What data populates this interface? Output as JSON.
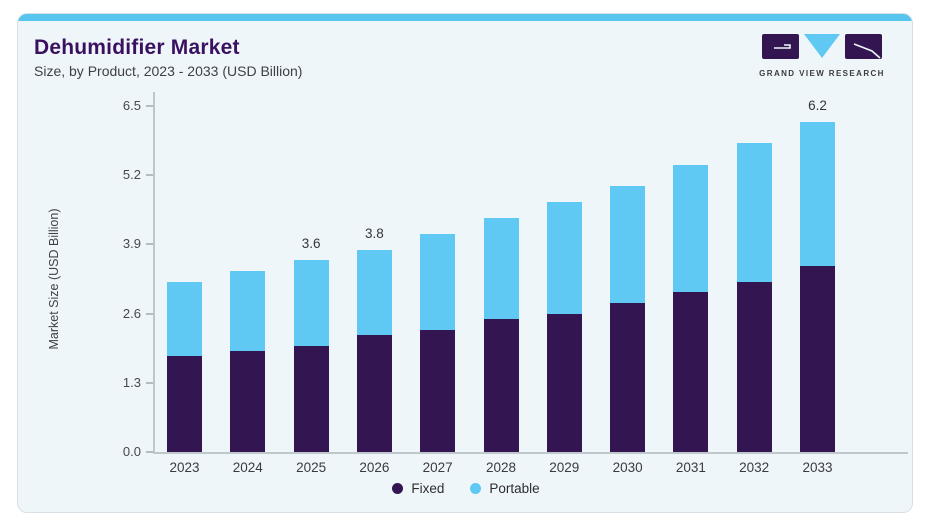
{
  "header": {
    "title": "Dehumidifier Market",
    "subtitle": "Size, by Product, 2023 - 2033 (USD Billion)"
  },
  "logo": {
    "text": "GRAND VIEW RESEARCH",
    "purple": "#331552",
    "blue": "#5fc8f3"
  },
  "colors": {
    "card_bg": "#eff6fa",
    "accent_strip": "#57c4ee",
    "fixed_purple": "#331552",
    "portable_blue": "#5fc8f3",
    "title_purple": "#3a1160"
  },
  "chart_data": {
    "type": "bar",
    "stacked": true,
    "title": "Dehumidifier Market",
    "subtitle": "Size, by Product, 2023 - 2033 (USD Billion)",
    "xlabel": "",
    "ylabel": "Market Size (USD Billion)",
    "categories": [
      "2023",
      "2024",
      "2025",
      "2026",
      "2027",
      "2028",
      "2029",
      "2030",
      "2031",
      "2032",
      "2033"
    ],
    "series": [
      {
        "name": "Fixed",
        "color": "#331552",
        "values": [
          1.8,
          1.9,
          2.0,
          2.2,
          2.3,
          2.5,
          2.6,
          2.8,
          3.0,
          3.2,
          3.5
        ]
      },
      {
        "name": "Portable",
        "color": "#5fc8f3",
        "values": [
          1.4,
          1.5,
          1.6,
          1.6,
          1.8,
          1.9,
          2.1,
          2.2,
          2.4,
          2.6,
          2.7
        ]
      }
    ],
    "totals": [
      3.2,
      3.4,
      3.6,
      3.8,
      4.1,
      4.4,
      4.7,
      5.0,
      5.4,
      5.8,
      6.2
    ],
    "total_labels": {
      "2025": "3.6",
      "2026": "3.8",
      "2033": "6.2"
    },
    "yticks": [
      0.0,
      1.3,
      2.6,
      3.9,
      5.2,
      6.5
    ],
    "ylim": [
      0,
      6.5
    ],
    "grid": false,
    "legend_position": "bottom"
  }
}
